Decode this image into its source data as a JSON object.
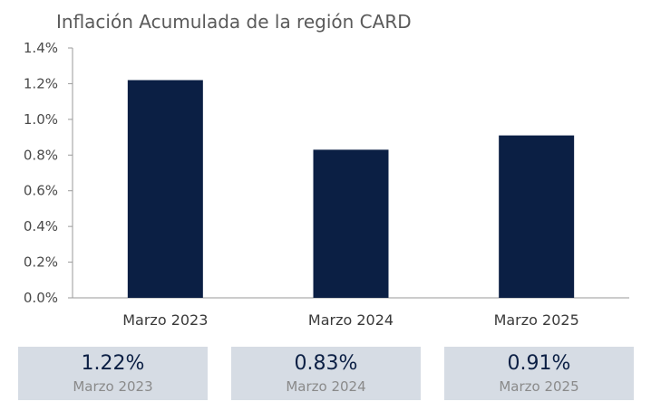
{
  "chart_data": {
    "type": "bar",
    "title": "Inflación Acumulada de la región CARD",
    "categories": [
      "Marzo 2023",
      "Marzo 2024",
      "Marzo 2025"
    ],
    "values": [
      1.22,
      0.83,
      0.91
    ],
    "value_unit": "%",
    "ylim": [
      0,
      1.4
    ],
    "yticks": [
      "0.0%",
      "0.2%",
      "0.4%",
      "0.6%",
      "0.8%",
      "1.0%",
      "1.2%",
      "1.4%"
    ],
    "bar_color": "#0b1f44",
    "grid": false,
    "legend": "none"
  },
  "summary_cards": [
    {
      "value": "1.22%",
      "label": "Marzo 2023"
    },
    {
      "value": "0.83%",
      "label": "Marzo 2024"
    },
    {
      "value": "0.91%",
      "label": "Marzo 2025"
    }
  ],
  "colors": {
    "bar": "#0b1f44",
    "card_bg": "#d6dce4",
    "card_value": "#0b1f44",
    "card_label": "#8a8a8a",
    "axis": "#9a9a9a"
  }
}
